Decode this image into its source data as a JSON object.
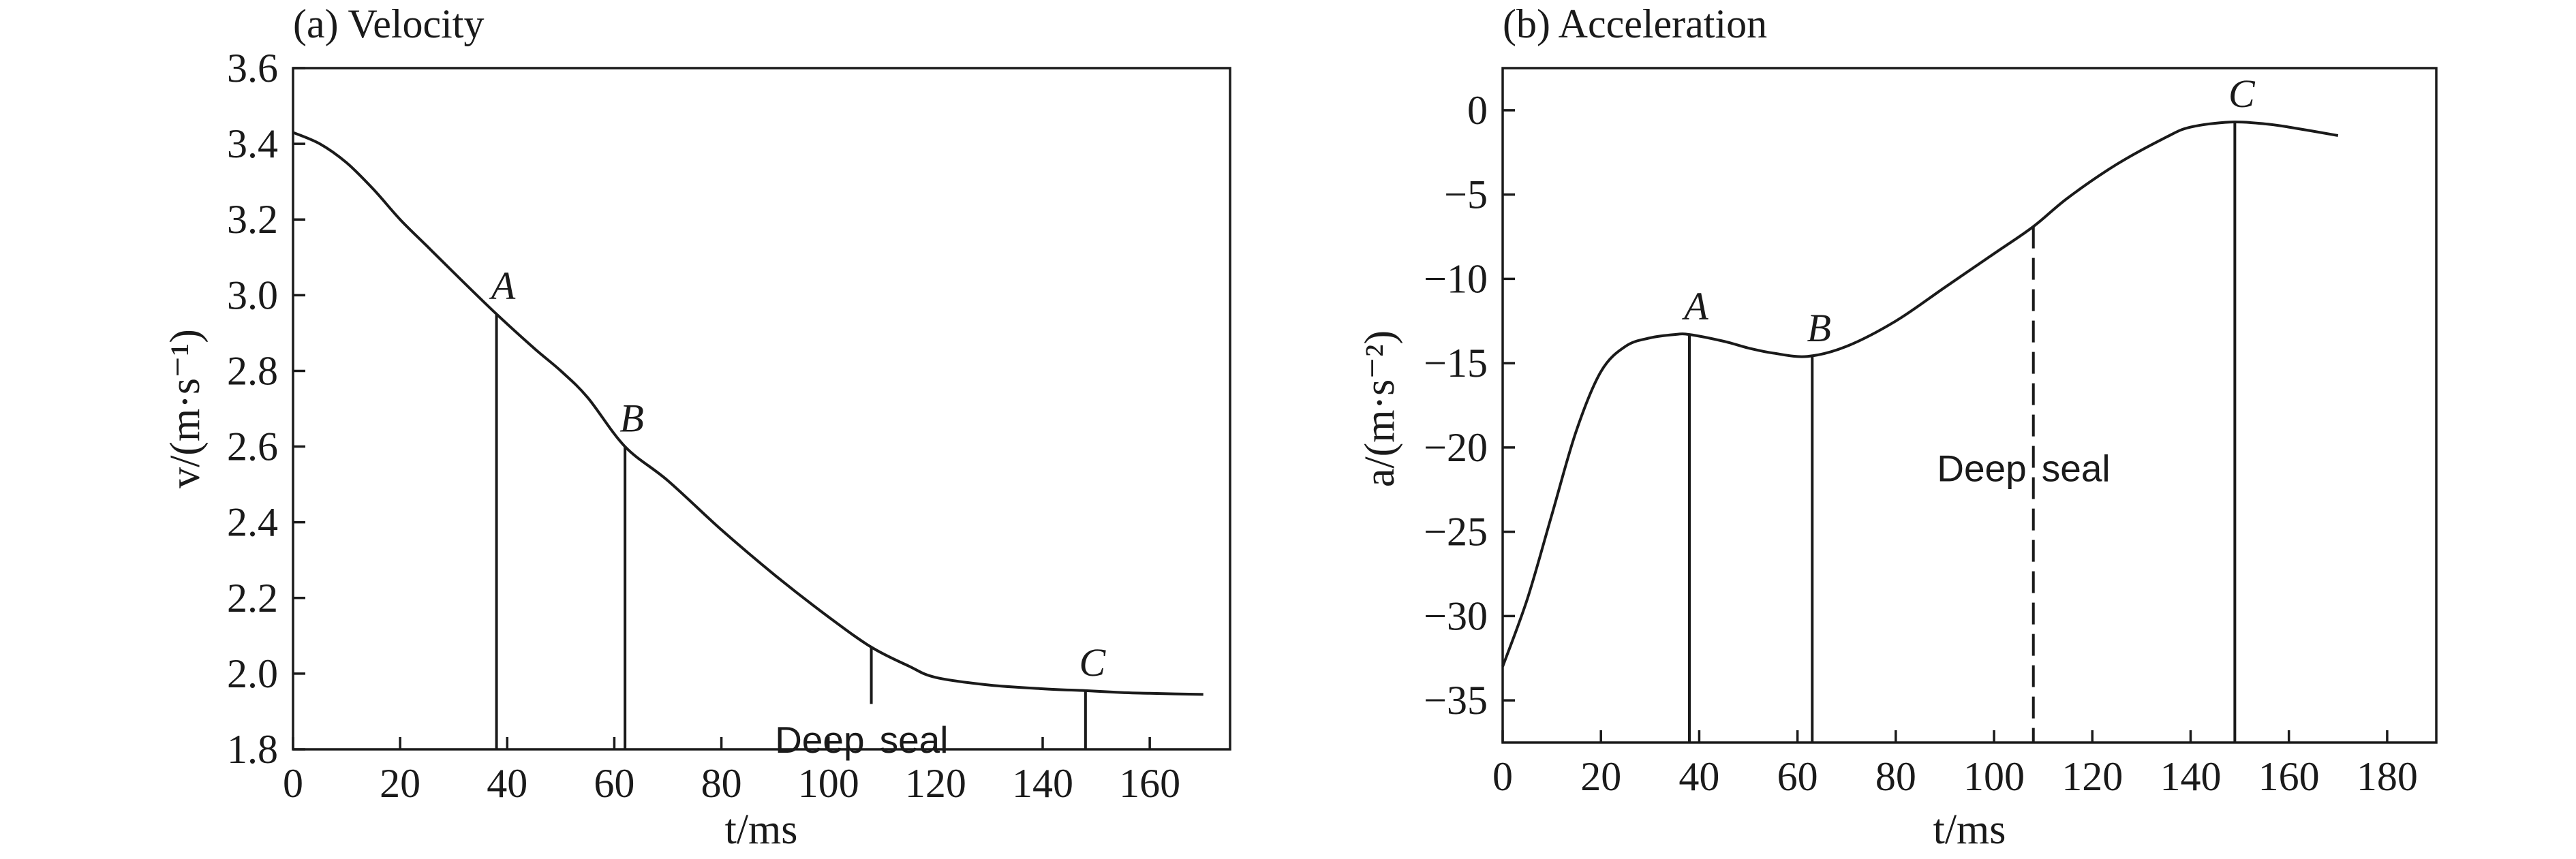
{
  "chart_data": [
    {
      "type": "line",
      "title": "(a) Velocity",
      "xlabel": "t/ms",
      "ylabel": "v/(m·s⁻¹)",
      "xlim": [
        0,
        175
      ],
      "ylim": [
        1.8,
        3.6
      ],
      "xticks": [
        0,
        20,
        40,
        60,
        80,
        100,
        120,
        140,
        160
      ],
      "yticks": [
        1.8,
        2.0,
        2.2,
        2.4,
        2.6,
        2.8,
        3.0,
        3.2,
        3.4,
        3.6
      ],
      "ytick_labels": [
        "1.8",
        "2.0",
        "2.2",
        "2.4",
        "2.6",
        "2.8",
        "3.0",
        "3.2",
        "3.4",
        "3.6"
      ],
      "grid": false,
      "x": [
        0,
        5,
        10,
        15,
        20,
        25,
        30,
        38,
        45,
        50,
        55,
        62,
        70,
        80,
        90,
        100,
        108,
        115,
        120,
        130,
        140,
        148,
        155,
        160,
        170
      ],
      "y": [
        3.43,
        3.4,
        3.35,
        3.28,
        3.2,
        3.13,
        3.06,
        2.95,
        2.86,
        2.8,
        2.73,
        2.6,
        2.51,
        2.38,
        2.26,
        2.15,
        2.07,
        2.02,
        1.99,
        1.97,
        1.96,
        1.955,
        1.95,
        1.948,
        1.945
      ],
      "annotations": [
        {
          "label": "A",
          "x": 38,
          "y": 2.95,
          "style": "solid"
        },
        {
          "label": "B",
          "x": 62,
          "y": 2.6,
          "style": "solid"
        },
        {
          "label": "C",
          "x": 148,
          "y": 1.955,
          "style": "solid"
        }
      ],
      "deep_seal": {
        "label_left": "Deep",
        "label_right": "seal",
        "x": 108,
        "y_top": 2.07,
        "y_bottom": 1.92
      }
    },
    {
      "type": "line",
      "title": "(b) Acceleration",
      "xlabel": "t/ms",
      "ylabel": "a/(m·s⁻²)",
      "xlim": [
        0,
        190
      ],
      "ylim": [
        -37.5,
        2.5
      ],
      "xticks": [
        0,
        20,
        40,
        60,
        80,
        100,
        120,
        140,
        160,
        180
      ],
      "yticks": [
        -35,
        -30,
        -25,
        -20,
        -15,
        -10,
        -5,
        0
      ],
      "ytick_labels": [
        "−35",
        "−30",
        "−25",
        "−20",
        "−15",
        "−10",
        "−5",
        "0"
      ],
      "grid": false,
      "x": [
        0,
        5,
        10,
        15,
        20,
        25,
        30,
        35,
        38,
        45,
        50,
        55,
        62,
        70,
        80,
        90,
        100,
        108,
        115,
        125,
        135,
        140,
        148,
        155,
        160,
        170
      ],
      "y": [
        -33,
        -29,
        -24,
        -19,
        -15.5,
        -14,
        -13.5,
        -13.3,
        -13.3,
        -13.7,
        -14.1,
        -14.4,
        -14.6,
        -14.0,
        -12.5,
        -10.5,
        -8.5,
        -6.9,
        -5.2,
        -3.2,
        -1.6,
        -1.0,
        -0.7,
        -0.8,
        -1.0,
        -1.5
      ],
      "annotations": [
        {
          "label": "A",
          "x": 38,
          "y": -13.3,
          "style": "solid"
        },
        {
          "label": "B",
          "x": 63,
          "y": -14.6,
          "style": "solid"
        },
        {
          "label": "C",
          "x": 149,
          "y": -0.7,
          "style": "solid"
        }
      ],
      "deep_seal": {
        "label_left": "Deep",
        "label_right": "seal",
        "x": 108,
        "y_top": -6.9,
        "y_bottom": -37.5,
        "style": "dashed"
      }
    }
  ]
}
